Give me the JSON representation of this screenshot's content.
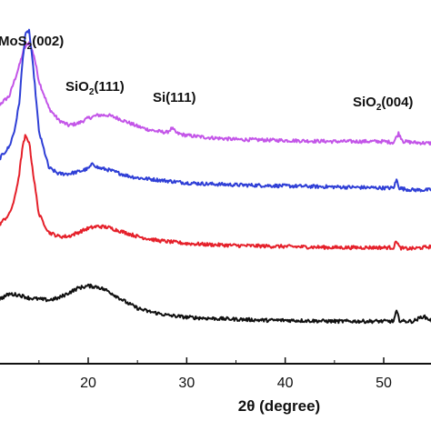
{
  "chart_data": {
    "type": "line",
    "xlabel": "2θ (degree)",
    "ylabel": "",
    "xlim": [
      10,
      55
    ],
    "x_ticks": [
      20,
      30,
      40,
      50
    ],
    "x_tick_labels": [
      "20",
      "30",
      "40",
      "50"
    ],
    "y_ticks_shown": false,
    "grid": false,
    "legend": "none",
    "annotations": [
      {
        "base": "MoS",
        "sub": "2",
        "tail": "(002)",
        "x": 14.2
      },
      {
        "base": "SiO",
        "sub": "2",
        "tail": "(111)",
        "x": 21.5
      },
      {
        "base": "Si(111)",
        "sub": "",
        "tail": "",
        "x": 28.5
      },
      {
        "base": "SiO",
        "sub": "2",
        "tail": "(004)",
        "x": 51.5
      }
    ],
    "series": [
      {
        "color": "#c355e8",
        "x": [
          10,
          12,
          13,
          13.5,
          14,
          14.5,
          15,
          16,
          17,
          18,
          19,
          20,
          21,
          22,
          23,
          24,
          25,
          26,
          27,
          28,
          28.5,
          29,
          30,
          32,
          35,
          40,
          45,
          50,
          51,
          51.5,
          52,
          53,
          55
        ],
        "y": [
          1.38,
          1.55,
          1.85,
          2.02,
          2.08,
          1.95,
          1.7,
          1.43,
          1.31,
          1.26,
          1.28,
          1.33,
          1.36,
          1.36,
          1.33,
          1.29,
          1.25,
          1.22,
          1.2,
          1.19,
          1.23,
          1.18,
          1.16,
          1.14,
          1.12,
          1.11,
          1.1,
          1.1,
          1.09,
          1.18,
          1.1,
          1.09,
          1.08
        ]
      },
      {
        "color": "#2f3fd6",
        "x": [
          10,
          11,
          12,
          12.5,
          13,
          13.3,
          13.6,
          14,
          14.5,
          15,
          16,
          17,
          18,
          19,
          20,
          20.5,
          21,
          22,
          23,
          24,
          25,
          26,
          27,
          28,
          29,
          30,
          32,
          35,
          40,
          45,
          50,
          51,
          51.3,
          51.6,
          52,
          53,
          55
        ],
        "y": [
          0.88,
          0.93,
          1.05,
          1.2,
          1.48,
          1.85,
          2.15,
          2.2,
          1.75,
          1.2,
          0.84,
          0.78,
          0.78,
          0.8,
          0.83,
          0.88,
          0.84,
          0.82,
          0.79,
          0.76,
          0.74,
          0.73,
          0.72,
          0.71,
          0.7,
          0.69,
          0.68,
          0.67,
          0.66,
          0.65,
          0.64,
          0.64,
          0.72,
          0.64,
          0.63,
          0.62,
          0.62
        ]
      },
      {
        "color": "#e5202a",
        "x": [
          10,
          11,
          12,
          12.5,
          13,
          13.3,
          13.6,
          14,
          14.5,
          15,
          16,
          17,
          18,
          19,
          20,
          21,
          22,
          23,
          24,
          25,
          26,
          27,
          28,
          29,
          30,
          32,
          35,
          40,
          45,
          50,
          51,
          51.3,
          51.6,
          52,
          53,
          55
        ],
        "y": [
          0.22,
          0.28,
          0.38,
          0.52,
          0.78,
          1.02,
          1.15,
          1.1,
          0.72,
          0.38,
          0.2,
          0.16,
          0.16,
          0.2,
          0.24,
          0.26,
          0.25,
          0.22,
          0.19,
          0.16,
          0.14,
          0.12,
          0.11,
          0.1,
          0.09,
          0.08,
          0.07,
          0.06,
          0.05,
          0.05,
          0.05,
          0.12,
          0.05,
          0.04,
          0.04,
          0.06
        ]
      },
      {
        "color": "#111111",
        "x": [
          10,
          11,
          12,
          13,
          14,
          15,
          16,
          17,
          18,
          19,
          20,
          21,
          22,
          23,
          24,
          25,
          26,
          27,
          28,
          29,
          30,
          32,
          35,
          38,
          40,
          45,
          50,
          51,
          51.3,
          51.6,
          52,
          53,
          54,
          55
        ],
        "y": [
          -0.52,
          -0.46,
          -0.41,
          -0.42,
          -0.45,
          -0.46,
          -0.47,
          -0.45,
          -0.4,
          -0.35,
          -0.33,
          -0.34,
          -0.38,
          -0.44,
          -0.5,
          -0.55,
          -0.58,
          -0.6,
          -0.62,
          -0.63,
          -0.64,
          -0.65,
          -0.66,
          -0.67,
          -0.67,
          -0.68,
          -0.68,
          -0.68,
          -0.58,
          -0.67,
          -0.68,
          -0.68,
          -0.63,
          -0.68
        ]
      }
    ]
  }
}
